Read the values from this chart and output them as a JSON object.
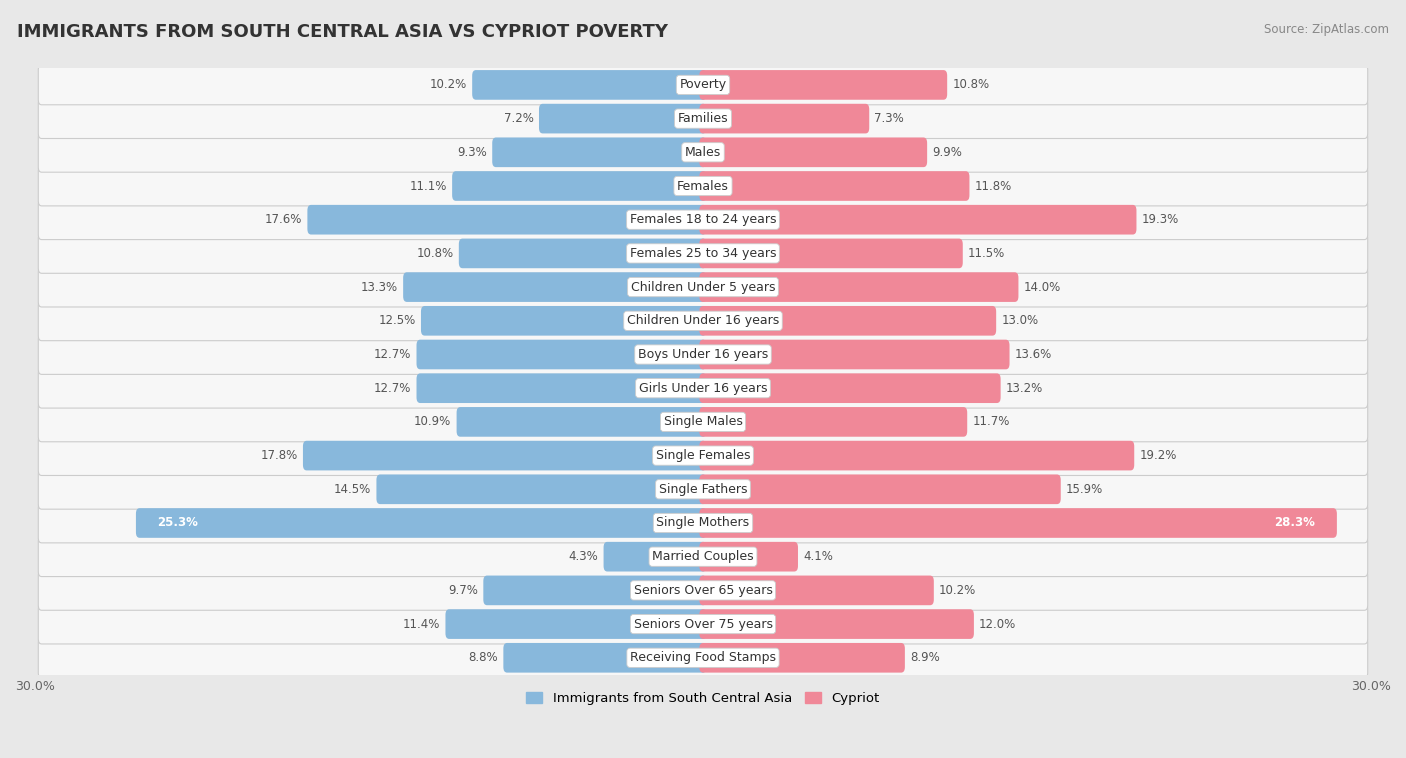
{
  "title": "IMMIGRANTS FROM SOUTH CENTRAL ASIA VS CYPRIOT POVERTY",
  "source": "Source: ZipAtlas.com",
  "categories": [
    "Poverty",
    "Families",
    "Males",
    "Females",
    "Females 18 to 24 years",
    "Females 25 to 34 years",
    "Children Under 5 years",
    "Children Under 16 years",
    "Boys Under 16 years",
    "Girls Under 16 years",
    "Single Males",
    "Single Females",
    "Single Fathers",
    "Single Mothers",
    "Married Couples",
    "Seniors Over 65 years",
    "Seniors Over 75 years",
    "Receiving Food Stamps"
  ],
  "left_values": [
    10.2,
    7.2,
    9.3,
    11.1,
    17.6,
    10.8,
    13.3,
    12.5,
    12.7,
    12.7,
    10.9,
    17.8,
    14.5,
    25.3,
    4.3,
    9.7,
    11.4,
    8.8
  ],
  "right_values": [
    10.8,
    7.3,
    9.9,
    11.8,
    19.3,
    11.5,
    14.0,
    13.0,
    13.6,
    13.2,
    11.7,
    19.2,
    15.9,
    28.3,
    4.1,
    10.2,
    12.0,
    8.9
  ],
  "left_color": "#88b8dc",
  "right_color": "#f08898",
  "left_label": "Immigrants from South Central Asia",
  "right_label": "Cypriot",
  "axis_max": 30.0,
  "background_color": "#e8e8e8",
  "row_bg_color": "#f7f7f7",
  "label_fontsize": 9.0,
  "value_fontsize": 8.5,
  "title_fontsize": 13,
  "bar_height": 0.55
}
